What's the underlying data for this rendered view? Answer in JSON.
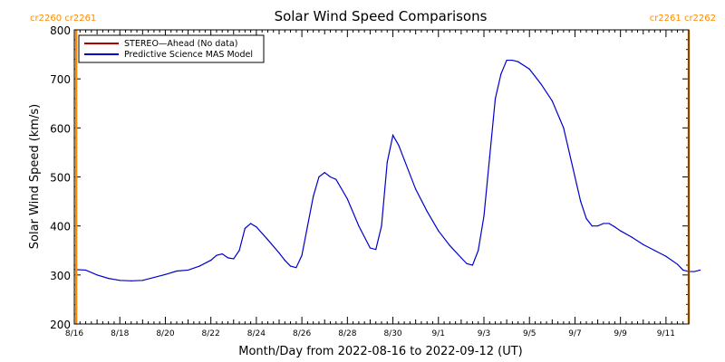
{
  "chart_data": {
    "type": "line",
    "title": "Solar Wind Speed Comparisons",
    "xlabel": "Month/Day from 2022-08-16 to 2022-09-12 (UT)",
    "ylabel": "Solar Wind Speed (km/s)",
    "xlim": [
      "2022-08-16",
      "2022-09-12"
    ],
    "ylim": [
      200,
      800
    ],
    "y_ticks": [
      200,
      300,
      400,
      500,
      600,
      700,
      800
    ],
    "y_tick_labels": [
      "200",
      "300",
      "400",
      "500",
      "600",
      "700",
      "800"
    ],
    "x_ticks": [
      "2022-08-16",
      "2022-08-18",
      "2022-08-20",
      "2022-08-22",
      "2022-08-24",
      "2022-08-26",
      "2022-08-28",
      "2022-08-30",
      "2022-09-01",
      "2022-09-03",
      "2022-09-05",
      "2022-09-07",
      "2022-09-09",
      "2022-09-11"
    ],
    "x_tick_labels": [
      "8/16",
      "8/18",
      "8/20",
      "8/22",
      "8/24",
      "8/26",
      "8/28",
      "8/30",
      "9/1",
      "9/3",
      "9/5",
      "9/7",
      "9/9",
      "9/11"
    ],
    "legend_placement": "top-left",
    "legend": [
      {
        "name": "STEREO—Ahead (No data)",
        "color": "#b00000"
      },
      {
        "name": "Predictive Science MAS Model",
        "color": "#0000cc"
      }
    ],
    "series": [
      {
        "name": "Predictive Science MAS Model",
        "color": "#0000cc",
        "x": [
          "2022-08-16T00:00",
          "2022-08-16T12:00",
          "2022-08-17T00:00",
          "2022-08-17T12:00",
          "2022-08-18T00:00",
          "2022-08-18T12:00",
          "2022-08-19T00:00",
          "2022-08-19T12:00",
          "2022-08-20T00:00",
          "2022-08-20T12:00",
          "2022-08-21T00:00",
          "2022-08-21T12:00",
          "2022-08-22T00:00",
          "2022-08-22T06:00",
          "2022-08-22T12:00",
          "2022-08-22T18:00",
          "2022-08-23T00:00",
          "2022-08-23T06:00",
          "2022-08-23T12:00",
          "2022-08-23T18:00",
          "2022-08-24T00:00",
          "2022-08-24T12:00",
          "2022-08-25T00:00",
          "2022-08-25T06:00",
          "2022-08-25T12:00",
          "2022-08-25T18:00",
          "2022-08-26T00:00",
          "2022-08-26T06:00",
          "2022-08-26T12:00",
          "2022-08-26T18:00",
          "2022-08-27T00:00",
          "2022-08-27T06:00",
          "2022-08-27T12:00",
          "2022-08-28T00:00",
          "2022-08-28T12:00",
          "2022-08-29T00:00",
          "2022-08-29T06:00",
          "2022-08-29T12:00",
          "2022-08-29T18:00",
          "2022-08-30T00:00",
          "2022-08-30T06:00",
          "2022-08-30T12:00",
          "2022-08-31T00:00",
          "2022-08-31T12:00",
          "2022-09-01T00:00",
          "2022-09-01T12:00",
          "2022-09-02T00:00",
          "2022-09-02T06:00",
          "2022-09-02T12:00",
          "2022-09-02T18:00",
          "2022-09-03T00:00",
          "2022-09-03T06:00",
          "2022-09-03T12:00",
          "2022-09-03T18:00",
          "2022-09-04T00:00",
          "2022-09-04T06:00",
          "2022-09-04T12:00",
          "2022-09-05T00:00",
          "2022-09-05T12:00",
          "2022-09-06T00:00",
          "2022-09-06T12:00",
          "2022-09-07T00:00",
          "2022-09-07T06:00",
          "2022-09-07T12:00",
          "2022-09-07T18:00",
          "2022-09-08T00:00",
          "2022-09-08T06:00",
          "2022-09-08T12:00",
          "2022-09-08T18:00",
          "2022-09-09T00:00",
          "2022-09-09T12:00",
          "2022-09-10T00:00",
          "2022-09-10T12:00",
          "2022-09-11T00:00",
          "2022-09-11T12:00",
          "2022-09-11T18:00",
          "2022-09-12T00:00",
          "2022-09-12T06:00",
          "2022-09-12T12:00"
        ],
        "values": [
          311,
          310,
          300,
          293,
          289,
          288,
          289,
          295,
          301,
          308,
          310,
          318,
          330,
          340,
          343,
          335,
          333,
          350,
          395,
          405,
          398,
          372,
          345,
          330,
          318,
          315,
          340,
          400,
          460,
          500,
          509,
          500,
          495,
          455,
          400,
          355,
          352,
          400,
          530,
          585,
          565,
          535,
          475,
          430,
          390,
          360,
          335,
          323,
          320,
          350,
          420,
          540,
          660,
          710,
          738,
          738,
          735,
          720,
          690,
          655,
          600,
          500,
          450,
          415,
          400,
          400,
          405,
          405,
          398,
          390,
          377,
          362,
          350,
          338,
          322,
          310,
          307,
          307,
          310
        ]
      }
    ]
  },
  "cr_labels": {
    "left": "cr2260  cr2261",
    "right": "cr2261  cr2262"
  },
  "cr_boundaries": [
    "2022-08-16T02:00",
    "2022-09-12T00:00"
  ],
  "colors": {
    "boundary": "#ff8c00",
    "model_line": "#0000cc",
    "stereo_line": "#b00000"
  }
}
